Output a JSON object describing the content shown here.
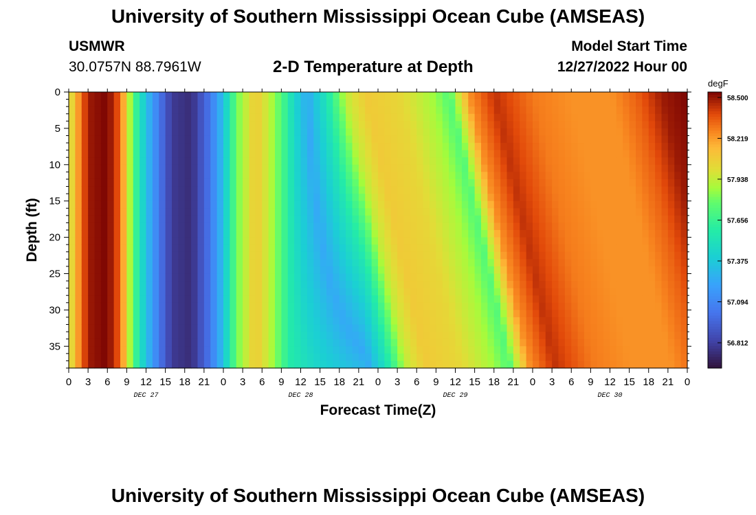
{
  "header": {
    "title": "University of Southern Mississippi Ocean Cube (AMSEAS)",
    "station": "USMWR",
    "coords": "30.0757N  88.7961W",
    "subtitle": "2-D Temperature at Depth",
    "model_start_label": "Model Start Time",
    "model_start_value": "12/27/2022 Hour 00"
  },
  "footer": {
    "title": "University of Southern Mississippi Ocean Cube (AMSEAS)"
  },
  "chart_data": {
    "type": "heatmap",
    "title": "2-D Temperature at Depth",
    "xlabel": "Forecast Time(Z)",
    "ylabel": "Depth (ft)",
    "x_ticks": [
      "0",
      "3",
      "6",
      "9",
      "12",
      "15",
      "18",
      "21",
      "0",
      "3",
      "6",
      "9",
      "12",
      "15",
      "18",
      "21",
      "0",
      "3",
      "6",
      "9",
      "12",
      "15",
      "18",
      "21",
      "0",
      "3",
      "6",
      "9",
      "12",
      "15",
      "18",
      "21",
      "0"
    ],
    "x_range_hours": [
      0,
      96
    ],
    "day_labels": [
      {
        "label": "DEC 27",
        "hour": 12
      },
      {
        "label": "DEC 28",
        "hour": 36
      },
      {
        "label": "DEC 29",
        "hour": 60
      },
      {
        "label": "DEC 30",
        "hour": 84
      }
    ],
    "y_ticks": [
      0,
      5,
      10,
      15,
      20,
      25,
      30,
      35
    ],
    "ylim": [
      0,
      38
    ],
    "y_inverted": true,
    "colorbar": {
      "unit": "degF",
      "min": 56.6,
      "max": 58.5,
      "ticks": [
        "58.500",
        "58.219",
        "57.938",
        "57.656",
        "57.375",
        "57.094",
        "56.812"
      ]
    },
    "surface_temperature_profile": [
      {
        "hour": 0,
        "degF": 57.9
      },
      {
        "hour": 1,
        "degF": 58.1
      },
      {
        "hour": 3,
        "degF": 58.45
      },
      {
        "hour": 6,
        "degF": 58.5
      },
      {
        "hour": 8,
        "degF": 58.3
      },
      {
        "hour": 10,
        "degF": 57.7
      },
      {
        "hour": 12,
        "degF": 57.3
      },
      {
        "hour": 14,
        "degF": 57.0
      },
      {
        "hour": 16,
        "degF": 56.75
      },
      {
        "hour": 19,
        "degF": 56.7
      },
      {
        "hour": 22,
        "degF": 57.0
      },
      {
        "hour": 24,
        "degF": 57.3
      },
      {
        "hour": 26,
        "degF": 57.75
      },
      {
        "hour": 29,
        "degF": 58.05
      },
      {
        "hour": 31,
        "degF": 57.9
      },
      {
        "hour": 33,
        "degF": 57.7
      },
      {
        "hour": 35,
        "degF": 57.4
      },
      {
        "hour": 37,
        "degF": 57.2
      },
      {
        "hour": 40,
        "degF": 57.5
      },
      {
        "hour": 43,
        "degF": 57.9
      },
      {
        "hour": 46,
        "degF": 58.05
      },
      {
        "hour": 51,
        "degF": 58.0
      },
      {
        "hour": 56,
        "degF": 57.85
      },
      {
        "hour": 59,
        "degF": 57.7
      },
      {
        "hour": 62,
        "degF": 58.2
      },
      {
        "hour": 66,
        "degF": 58.4
      },
      {
        "hour": 72,
        "degF": 58.25
      },
      {
        "hour": 78,
        "degF": 58.2
      },
      {
        "hour": 84,
        "degF": 58.2
      },
      {
        "hour": 88,
        "degF": 58.3
      },
      {
        "hour": 92,
        "degF": 58.45
      },
      {
        "hour": 96,
        "degF": 58.5
      }
    ]
  }
}
